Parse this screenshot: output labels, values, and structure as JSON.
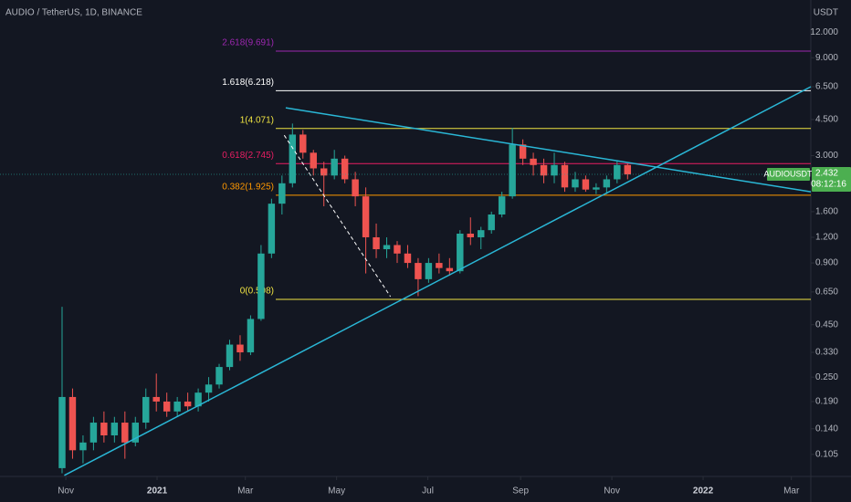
{
  "chart_data": {
    "type": "candlestick",
    "title": "AUDIO / TetherUS, 1D, BINANCE",
    "y_unit": "USDT",
    "symbol": "AUDIOUSDT",
    "last_price": 2.432,
    "countdown": "08:12:16",
    "log_scale": true,
    "up_color": "#26a69a",
    "down_color": "#ef5350",
    "ylim": [
      0.082,
      17.2
    ],
    "yticks": [
      {
        "value": 12,
        "label": "12.000"
      },
      {
        "value": 9,
        "label": "9.000"
      },
      {
        "value": 6.5,
        "label": "6.500"
      },
      {
        "value": 4.5,
        "label": "4.500"
      },
      {
        "value": 3,
        "label": "3.000"
      },
      {
        "value": 1.6,
        "label": "1.600"
      },
      {
        "value": 1.2,
        "label": "1.200"
      },
      {
        "value": 0.9,
        "label": "0.900"
      },
      {
        "value": 0.65,
        "label": "0.650"
      },
      {
        "value": 0.45,
        "label": "0.450"
      },
      {
        "value": 0.33,
        "label": "0.330"
      },
      {
        "value": 0.25,
        "label": "0.250"
      },
      {
        "value": 0.19,
        "label": "0.190"
      },
      {
        "value": 0.14,
        "label": "0.140"
      },
      {
        "value": 0.105,
        "label": "0.105"
      }
    ],
    "xlim": [
      "2020-09-18",
      "2022-03-14"
    ],
    "xticks": [
      {
        "value": "2020-11-01",
        "label": "Nov"
      },
      {
        "value": "2021-01-01",
        "label": "2021"
      },
      {
        "value": "2021-03-01",
        "label": "Mar"
      },
      {
        "value": "2021-05-01",
        "label": "May"
      },
      {
        "value": "2021-07-01",
        "label": "Jul"
      },
      {
        "value": "2021-09-01",
        "label": "Sep"
      },
      {
        "value": "2021-11-01",
        "label": "Nov"
      },
      {
        "value": "2022-01-01",
        "label": "2022"
      },
      {
        "value": "2022-03-01",
        "label": "Mar"
      }
    ],
    "x": [
      "2020-10-26",
      "2020-11-02",
      "2020-11-09",
      "2020-11-16",
      "2020-11-23",
      "2020-11-30",
      "2020-12-07",
      "2020-12-14",
      "2020-12-21",
      "2020-12-28",
      "2021-01-04",
      "2021-01-11",
      "2021-01-18",
      "2021-01-25",
      "2021-02-01",
      "2021-02-08",
      "2021-02-15",
      "2021-02-22",
      "2021-03-01",
      "2021-03-08",
      "2021-03-15",
      "2021-03-22",
      "2021-03-29",
      "2021-04-05",
      "2021-04-12",
      "2021-04-19",
      "2021-04-26",
      "2021-05-03",
      "2021-05-10",
      "2021-05-17",
      "2021-05-24",
      "2021-05-31",
      "2021-06-07",
      "2021-06-14",
      "2021-06-21",
      "2021-06-28",
      "2021-07-05",
      "2021-07-12",
      "2021-07-19",
      "2021-07-26",
      "2021-08-02",
      "2021-08-09",
      "2021-08-16",
      "2021-08-23",
      "2021-08-30",
      "2021-09-06",
      "2021-09-13",
      "2021-09-20",
      "2021-09-27",
      "2021-10-04",
      "2021-10-11",
      "2021-10-18",
      "2021-10-25",
      "2021-11-01",
      "2021-11-08"
    ],
    "open": [
      0.09,
      0.2,
      0.11,
      0.12,
      0.15,
      0.13,
      0.15,
      0.12,
      0.15,
      0.2,
      0.19,
      0.17,
      0.19,
      0.18,
      0.21,
      0.23,
      0.28,
      0.36,
      0.33,
      0.48,
      1.0,
      1.75,
      2.2,
      3.8,
      3.1,
      2.6,
      2.4,
      2.9,
      2.3,
      1.9,
      1.2,
      1.05,
      1.1,
      1.0,
      0.9,
      0.75,
      0.9,
      0.85,
      0.82,
      1.25,
      1.2,
      1.3,
      1.55,
      1.9,
      3.4,
      2.9,
      2.7,
      2.4,
      2.7,
      2.1,
      2.3,
      2.05,
      2.1,
      2.3,
      2.7
    ],
    "high": [
      0.55,
      0.22,
      0.13,
      0.16,
      0.17,
      0.16,
      0.17,
      0.16,
      0.22,
      0.26,
      0.21,
      0.2,
      0.21,
      0.22,
      0.25,
      0.29,
      0.38,
      0.4,
      0.5,
      1.1,
      1.85,
      2.4,
      4.3,
      4.0,
      3.2,
      2.8,
      3.2,
      3.0,
      2.5,
      2.1,
      1.4,
      1.2,
      1.15,
      1.1,
      0.95,
      0.95,
      1.0,
      0.95,
      1.3,
      1.5,
      1.35,
      1.6,
      2.0,
      4.1,
      3.6,
      3.1,
      2.9,
      3.1,
      2.8,
      2.5,
      2.4,
      2.2,
      2.4,
      2.85,
      2.75
    ],
    "low": [
      0.085,
      0.1,
      0.095,
      0.11,
      0.12,
      0.12,
      0.1,
      0.115,
      0.14,
      0.17,
      0.16,
      0.16,
      0.17,
      0.17,
      0.19,
      0.22,
      0.27,
      0.3,
      0.32,
      0.47,
      0.95,
      1.55,
      2.1,
      2.9,
      2.4,
      1.7,
      2.3,
      2.2,
      1.7,
      0.8,
      0.95,
      0.95,
      0.9,
      0.85,
      0.62,
      0.72,
      0.8,
      0.78,
      0.8,
      1.1,
      1.05,
      1.25,
      1.5,
      1.85,
      2.7,
      2.4,
      2.2,
      2.2,
      2.0,
      2.0,
      2.0,
      1.95,
      1.95,
      2.2,
      2.3
    ],
    "close": [
      0.2,
      0.11,
      0.12,
      0.15,
      0.13,
      0.15,
      0.12,
      0.15,
      0.2,
      0.19,
      0.17,
      0.19,
      0.18,
      0.21,
      0.23,
      0.28,
      0.36,
      0.33,
      0.48,
      1.0,
      1.75,
      2.2,
      3.8,
      3.1,
      2.6,
      2.4,
      2.9,
      2.3,
      1.9,
      1.2,
      1.05,
      1.1,
      1.0,
      0.9,
      0.75,
      0.9,
      0.85,
      0.82,
      1.25,
      1.2,
      1.3,
      1.55,
      1.9,
      3.4,
      2.9,
      2.7,
      2.4,
      2.7,
      2.1,
      2.3,
      2.05,
      2.1,
      2.3,
      2.7,
      2.43
    ],
    "fib_levels": [
      {
        "label": "2.618(9.691)",
        "value": 9.691,
        "color": "#9c27b0"
      },
      {
        "label": "1.618(6.218)",
        "value": 6.218,
        "color": "#ffffff"
      },
      {
        "label": "1(4.071)",
        "value": 4.071,
        "color": "#f0e442"
      },
      {
        "label": "0.618(2.745)",
        "value": 2.745,
        "color": "#e91e63"
      },
      {
        "label": "0.382(1.925)",
        "value": 1.925,
        "color": "#ff9800"
      },
      {
        "label": "0(0.598)",
        "value": 0.598,
        "color": "#f0e442"
      }
    ],
    "trendlines": [
      {
        "x": [
          "2020-10-31",
          "2022-03-14"
        ],
        "values": [
          0.083,
          6.5
        ],
        "color": "#2ab7d6",
        "dash": false
      },
      {
        "x": [
          "2021-03-28",
          "2022-03-14"
        ],
        "values": [
          5.13,
          2.0
        ],
        "color": "#2ab7d6",
        "dash": false
      },
      {
        "x": [
          "2021-03-27",
          "2021-06-06"
        ],
        "values": [
          3.77,
          0.617
        ],
        "color": "#ffffff",
        "dash": true
      }
    ]
  }
}
